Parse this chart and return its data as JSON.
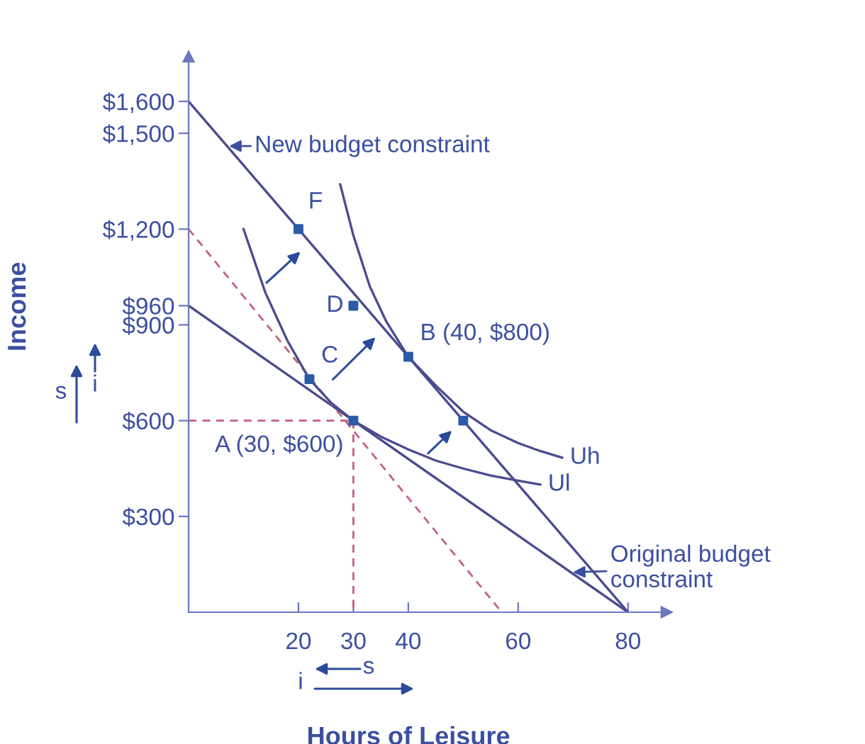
{
  "chart_data": {
    "type": "line",
    "xlabel": "Hours of Leisure",
    "ylabel": "Income",
    "xlim": [
      0,
      87
    ],
    "ylim": [
      0,
      1740
    ],
    "xticks": [
      20,
      30,
      40,
      60,
      80
    ],
    "yticks": [
      {
        "value": 300,
        "label": "$300"
      },
      {
        "value": 600,
        "label": "$600"
      },
      {
        "value": 900,
        "label": "$900"
      },
      {
        "value": 960,
        "label": "$960"
      },
      {
        "value": 1200,
        "label": "$1,200"
      },
      {
        "value": 1500,
        "label": "$1,500"
      },
      {
        "value": 1600,
        "label": "$1,600"
      }
    ],
    "grid": false,
    "legend": false,
    "series": [
      {
        "type": "line",
        "color": "#4b4b8f",
        "x": [
          0,
          80
        ],
        "values": [
          1600,
          0
        ],
        "line_style": "solid"
      },
      {
        "type": "line",
        "color": "#4b4b8f",
        "x": [
          0,
          80
        ],
        "values": [
          960,
          0
        ],
        "line_style": "solid"
      },
      {
        "type": "line",
        "color": "#c4607a",
        "x": [
          0,
          57
        ],
        "values": [
          1200,
          0
        ],
        "line_style": "dashed"
      },
      {
        "type": "line",
        "color": "#c4607a",
        "x": [
          0,
          30
        ],
        "values": [
          600,
          600
        ],
        "line_style": "dashed"
      },
      {
        "type": "line",
        "color": "#c4607a",
        "x": [
          30,
          30
        ],
        "values": [
          600,
          0
        ],
        "line_style": "dashed"
      },
      {
        "type": "line",
        "name": "Ul",
        "color": "#4b4b8f",
        "x": [
          10,
          14,
          18,
          22,
          26,
          30,
          35,
          40,
          45,
          50,
          55,
          60,
          64
        ],
        "values": [
          1200,
          1000,
          850,
          730,
          655,
          600,
          550,
          510,
          475,
          450,
          428,
          412,
          400
        ],
        "line_style": "solid"
      },
      {
        "type": "line",
        "name": "Uh",
        "color": "#4b4b8f",
        "x": [
          27.6,
          30,
          33,
          36,
          40,
          45,
          50,
          55,
          60,
          64,
          68
        ],
        "values": [
          1340,
          1180,
          1020,
          910,
          800,
          710,
          628,
          570,
          530,
          505,
          484
        ],
        "line_style": "solid"
      },
      {
        "type": "scatter",
        "color": "#2b5aa6",
        "marker": "square",
        "x": [
          20,
          30,
          40,
          22,
          30,
          50
        ],
        "values": [
          1200,
          960,
          800,
          730,
          600,
          600
        ]
      }
    ],
    "annotations": [
      {
        "text": "New budget constraint",
        "x": 7,
        "y": 1460
      },
      {
        "text": "Original budget constraint",
        "x": 69.6,
        "y": 125
      },
      {
        "text": "F",
        "x": 20,
        "y": 1200
      },
      {
        "text": "D",
        "x": 30,
        "y": 960
      },
      {
        "text": "C",
        "x": 22,
        "y": 730
      },
      {
        "text": "B (40, $800)",
        "x": 40,
        "y": 800
      },
      {
        "text": "A (30, $600)",
        "x": 30,
        "y": 600
      },
      "s",
      "i",
      "s",
      "i"
    ]
  }
}
